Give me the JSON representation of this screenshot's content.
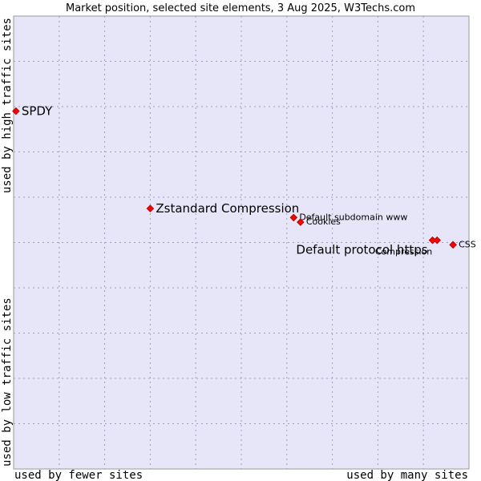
{
  "chart_data": {
    "type": "scatter",
    "title": "Market position, selected site elements, 3 Aug 2025, W3Techs.com",
    "xlabel_left": "used by fewer sites",
    "xlabel_right": "used by many sites",
    "ylabel_top": "used by high traffic sites",
    "ylabel_bottom": "used by low traffic sites",
    "xlim": [
      0,
      100
    ],
    "ylim": [
      0,
      100
    ],
    "grid": true,
    "legend": "none",
    "points": [
      {
        "name": "SPDY",
        "x": 0.5,
        "y": 79.0,
        "size": "large",
        "label_side": "right"
      },
      {
        "name": "Zstandard Compression",
        "x": 30.0,
        "y": 57.5,
        "size": "large",
        "label_side": "right"
      },
      {
        "name": "Default subdomain www",
        "x": 61.5,
        "y": 55.5,
        "size": "small",
        "label_side": "right"
      },
      {
        "name": "Cookies",
        "x": 63.0,
        "y": 54.5,
        "size": "small",
        "label_side": "right"
      },
      {
        "name": "Default protocol https",
        "x": 92.0,
        "y": 50.5,
        "size": "large",
        "label_side": "left"
      },
      {
        "name": "Compression",
        "x": 93.0,
        "y": 50.5,
        "size": "small",
        "label_side": "left"
      },
      {
        "name": "CSS",
        "x": 96.5,
        "y": 49.5,
        "size": "small",
        "label_side": "right"
      }
    ]
  }
}
